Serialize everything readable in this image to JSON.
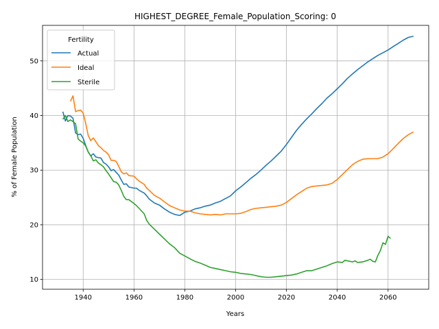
{
  "chart_data": {
    "type": "line",
    "title": "HIGHEST_DEGREE_Female_Population_Scoring: 0",
    "xlabel": "Years",
    "ylabel": "% of Female Population",
    "xlim": [
      1924,
      2076
    ],
    "ylim": [
      8.2,
      56.5
    ],
    "xticks": [
      1940,
      1960,
      1980,
      2000,
      2020,
      2040,
      2060
    ],
    "yticks": [
      10,
      20,
      30,
      40,
      50
    ],
    "grid": true,
    "legend": {
      "title": "Fertility",
      "placement": "top-left"
    },
    "series": [
      {
        "name": "Actual",
        "color": "#1f77b4",
        "points": [
          [
            1932,
            40.7
          ],
          [
            1933,
            39.0
          ],
          [
            1934,
            40.0
          ],
          [
            1935,
            39.9
          ],
          [
            1936,
            39.5
          ],
          [
            1937,
            36.8
          ],
          [
            1938,
            36.5
          ],
          [
            1939,
            36.6
          ],
          [
            1940,
            35.8
          ],
          [
            1941,
            34.5
          ],
          [
            1942,
            33.3
          ],
          [
            1943,
            32.6
          ],
          [
            1944,
            33.0
          ],
          [
            1945,
            32.4
          ],
          [
            1946,
            32.3
          ],
          [
            1947,
            32.2
          ],
          [
            1948,
            31.4
          ],
          [
            1949,
            31.1
          ],
          [
            1950,
            30.6
          ],
          [
            1951,
            29.9
          ],
          [
            1952,
            30.1
          ],
          [
            1953,
            29.6
          ],
          [
            1954,
            29.1
          ],
          [
            1955,
            28.2
          ],
          [
            1956,
            27.4
          ],
          [
            1957,
            27.5
          ],
          [
            1958,
            26.9
          ],
          [
            1960,
            26.7
          ],
          [
            1961,
            26.7
          ],
          [
            1962,
            26.3
          ],
          [
            1964,
            25.8
          ],
          [
            1965,
            25.3
          ],
          [
            1966,
            24.7
          ],
          [
            1968,
            24.0
          ],
          [
            1970,
            23.6
          ],
          [
            1972,
            22.9
          ],
          [
            1974,
            22.3
          ],
          [
            1976,
            21.9
          ],
          [
            1978,
            21.7
          ],
          [
            1980,
            22.3
          ],
          [
            1982,
            22.5
          ],
          [
            1984,
            22.9
          ],
          [
            1986,
            23.1
          ],
          [
            1988,
            23.4
          ],
          [
            1990,
            23.6
          ],
          [
            1992,
            24.0
          ],
          [
            1994,
            24.3
          ],
          [
            1996,
            24.8
          ],
          [
            1998,
            25.3
          ],
          [
            2000,
            26.2
          ],
          [
            2002,
            26.9
          ],
          [
            2004,
            27.7
          ],
          [
            2006,
            28.5
          ],
          [
            2008,
            29.2
          ],
          [
            2010,
            30.0
          ],
          [
            2012,
            30.9
          ],
          [
            2014,
            31.7
          ],
          [
            2016,
            32.6
          ],
          [
            2018,
            33.5
          ],
          [
            2020,
            34.7
          ],
          [
            2022,
            36.0
          ],
          [
            2024,
            37.3
          ],
          [
            2026,
            38.4
          ],
          [
            2028,
            39.4
          ],
          [
            2030,
            40.3
          ],
          [
            2032,
            41.3
          ],
          [
            2034,
            42.2
          ],
          [
            2036,
            43.2
          ],
          [
            2038,
            44.0
          ],
          [
            2040,
            44.9
          ],
          [
            2042,
            45.8
          ],
          [
            2044,
            46.8
          ],
          [
            2046,
            47.6
          ],
          [
            2048,
            48.4
          ],
          [
            2050,
            49.1
          ],
          [
            2052,
            49.8
          ],
          [
            2054,
            50.4
          ],
          [
            2056,
            51.0
          ],
          [
            2058,
            51.5
          ],
          [
            2060,
            52.0
          ],
          [
            2062,
            52.6
          ],
          [
            2064,
            53.2
          ],
          [
            2066,
            53.8
          ],
          [
            2068,
            54.3
          ],
          [
            2070,
            54.5
          ]
        ]
      },
      {
        "name": "Ideal",
        "color": "#ff7f0e",
        "points": [
          [
            1935,
            42.6
          ],
          [
            1936,
            43.6
          ],
          [
            1937,
            40.7
          ],
          [
            1938,
            40.9
          ],
          [
            1939,
            41.0
          ],
          [
            1940,
            40.4
          ],
          [
            1941,
            38.5
          ],
          [
            1942,
            36.3
          ],
          [
            1943,
            35.4
          ],
          [
            1944,
            35.9
          ],
          [
            1945,
            35.2
          ],
          [
            1946,
            34.5
          ],
          [
            1947,
            34.1
          ],
          [
            1948,
            33.6
          ],
          [
            1949,
            33.3
          ],
          [
            1950,
            32.8
          ],
          [
            1951,
            31.8
          ],
          [
            1952,
            31.8
          ],
          [
            1953,
            31.6
          ],
          [
            1954,
            30.7
          ],
          [
            1955,
            29.7
          ],
          [
            1956,
            29.3
          ],
          [
            1957,
            29.5
          ],
          [
            1958,
            29.0
          ],
          [
            1960,
            28.9
          ],
          [
            1961,
            28.4
          ],
          [
            1962,
            28.0
          ],
          [
            1964,
            27.4
          ],
          [
            1965,
            26.7
          ],
          [
            1966,
            26.3
          ],
          [
            1968,
            25.4
          ],
          [
            1970,
            24.9
          ],
          [
            1972,
            24.2
          ],
          [
            1974,
            23.5
          ],
          [
            1976,
            23.1
          ],
          [
            1978,
            22.7
          ],
          [
            1980,
            22.5
          ],
          [
            1982,
            22.5
          ],
          [
            1984,
            22.2
          ],
          [
            1986,
            22.0
          ],
          [
            1988,
            21.9
          ],
          [
            1990,
            21.8
          ],
          [
            1992,
            21.9
          ],
          [
            1994,
            21.8
          ],
          [
            1996,
            22.0
          ],
          [
            1998,
            22.0
          ],
          [
            2000,
            22.0
          ],
          [
            2002,
            22.1
          ],
          [
            2004,
            22.4
          ],
          [
            2006,
            22.8
          ],
          [
            2008,
            23.0
          ],
          [
            2010,
            23.1
          ],
          [
            2012,
            23.2
          ],
          [
            2014,
            23.3
          ],
          [
            2016,
            23.4
          ],
          [
            2018,
            23.6
          ],
          [
            2020,
            24.1
          ],
          [
            2022,
            24.8
          ],
          [
            2024,
            25.5
          ],
          [
            2026,
            26.1
          ],
          [
            2028,
            26.7
          ],
          [
            2030,
            27.0
          ],
          [
            2032,
            27.1
          ],
          [
            2034,
            27.2
          ],
          [
            2036,
            27.3
          ],
          [
            2038,
            27.6
          ],
          [
            2040,
            28.3
          ],
          [
            2042,
            29.2
          ],
          [
            2044,
            30.1
          ],
          [
            2046,
            31.0
          ],
          [
            2048,
            31.6
          ],
          [
            2050,
            32.0
          ],
          [
            2052,
            32.1
          ],
          [
            2054,
            32.1
          ],
          [
            2056,
            32.1
          ],
          [
            2058,
            32.4
          ],
          [
            2060,
            33.0
          ],
          [
            2062,
            33.9
          ],
          [
            2064,
            34.9
          ],
          [
            2066,
            35.8
          ],
          [
            2068,
            36.5
          ],
          [
            2070,
            37.0
          ]
        ]
      },
      {
        "name": "Sterile",
        "color": "#2ca02c",
        "points": [
          [
            1932,
            39.3
          ],
          [
            1933,
            40.0
          ],
          [
            1934,
            38.9
          ],
          [
            1935,
            39.2
          ],
          [
            1936,
            38.9
          ],
          [
            1937,
            38.5
          ],
          [
            1938,
            35.7
          ],
          [
            1939,
            35.3
          ],
          [
            1940,
            35.0
          ],
          [
            1941,
            34.4
          ],
          [
            1942,
            33.3
          ],
          [
            1943,
            32.6
          ],
          [
            1944,
            31.7
          ],
          [
            1945,
            31.9
          ],
          [
            1946,
            31.3
          ],
          [
            1947,
            31.0
          ],
          [
            1948,
            30.6
          ],
          [
            1949,
            29.9
          ],
          [
            1950,
            29.3
          ],
          [
            1951,
            28.6
          ],
          [
            1952,
            27.9
          ],
          [
            1953,
            27.8
          ],
          [
            1954,
            27.3
          ],
          [
            1955,
            26.3
          ],
          [
            1956,
            25.2
          ],
          [
            1957,
            24.6
          ],
          [
            1958,
            24.6
          ],
          [
            1960,
            23.9
          ],
          [
            1961,
            23.5
          ],
          [
            1962,
            23.0
          ],
          [
            1964,
            22.0
          ],
          [
            1965,
            20.8
          ],
          [
            1966,
            20.1
          ],
          [
            1968,
            19.2
          ],
          [
            1970,
            18.3
          ],
          [
            1972,
            17.4
          ],
          [
            1974,
            16.5
          ],
          [
            1976,
            15.8
          ],
          [
            1978,
            14.8
          ],
          [
            1980,
            14.3
          ],
          [
            1982,
            13.8
          ],
          [
            1984,
            13.3
          ],
          [
            1986,
            13.0
          ],
          [
            1988,
            12.6
          ],
          [
            1990,
            12.2
          ],
          [
            1992,
            12.0
          ],
          [
            1994,
            11.8
          ],
          [
            1996,
            11.6
          ],
          [
            1998,
            11.4
          ],
          [
            2000,
            11.3
          ],
          [
            2002,
            11.1
          ],
          [
            2004,
            11.0
          ],
          [
            2006,
            10.9
          ],
          [
            2008,
            10.7
          ],
          [
            2010,
            10.5
          ],
          [
            2012,
            10.4
          ],
          [
            2014,
            10.4
          ],
          [
            2016,
            10.5
          ],
          [
            2018,
            10.6
          ],
          [
            2020,
            10.7
          ],
          [
            2022,
            10.8
          ],
          [
            2024,
            11.0
          ],
          [
            2026,
            11.3
          ],
          [
            2028,
            11.6
          ],
          [
            2030,
            11.6
          ],
          [
            2032,
            11.9
          ],
          [
            2034,
            12.2
          ],
          [
            2036,
            12.5
          ],
          [
            2038,
            12.9
          ],
          [
            2040,
            13.2
          ],
          [
            2042,
            13.1
          ],
          [
            2043,
            13.5
          ],
          [
            2045,
            13.3
          ],
          [
            2046,
            13.2
          ],
          [
            2047,
            13.4
          ],
          [
            2048,
            13.1
          ],
          [
            2050,
            13.2
          ],
          [
            2052,
            13.5
          ],
          [
            2053,
            13.7
          ],
          [
            2054,
            13.3
          ],
          [
            2055,
            13.2
          ],
          [
            2056,
            14.4
          ],
          [
            2057,
            15.3
          ],
          [
            2058,
            16.7
          ],
          [
            2059,
            16.4
          ],
          [
            2060,
            17.9
          ],
          [
            2061,
            17.5
          ]
        ]
      }
    ]
  }
}
